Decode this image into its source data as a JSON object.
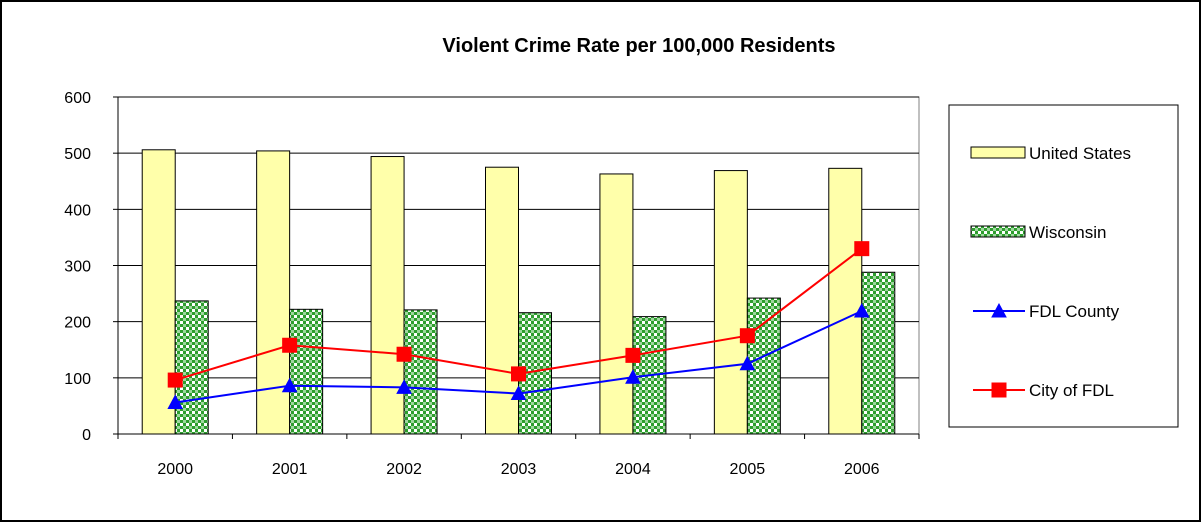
{
  "chart_data": {
    "type": "bar",
    "title": "Violent Crime Rate per 100,000 Residents",
    "categories": [
      "2000",
      "2001",
      "2002",
      "2003",
      "2004",
      "2005",
      "2006"
    ],
    "ylim": [
      0,
      600
    ],
    "yticks": [
      "0",
      "100",
      "200",
      "300",
      "400",
      "500",
      "600"
    ],
    "grid": true,
    "legend_position": "right",
    "series": [
      {
        "name": "United States",
        "kind": "bar",
        "color": "#ffffaa",
        "pattern": "solid",
        "values": [
          506,
          504,
          494,
          475,
          463,
          469,
          473
        ]
      },
      {
        "name": "Wisconsin",
        "kind": "bar",
        "color": "#33aa33",
        "pattern": "checker-green-white",
        "values": [
          237,
          222,
          221,
          216,
          209,
          242,
          288
        ]
      },
      {
        "name": "FDL County",
        "kind": "line",
        "color": "#0000ff",
        "marker": "triangle",
        "values": [
          56,
          86,
          83,
          72,
          101,
          125,
          219
        ]
      },
      {
        "name": "City of FDL",
        "kind": "line",
        "color": "#ff0000",
        "marker": "square",
        "values": [
          96,
          158,
          142,
          107,
          140,
          175,
          330
        ]
      }
    ]
  }
}
